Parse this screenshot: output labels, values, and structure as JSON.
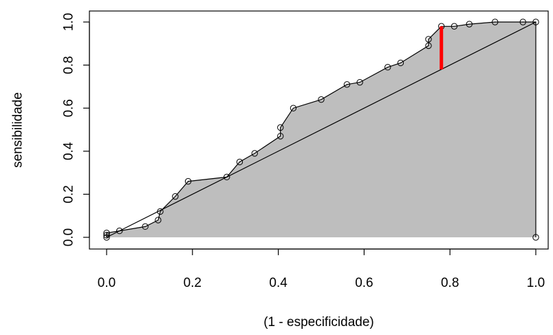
{
  "chart_data": {
    "type": "line",
    "title": "",
    "xlabel": "(1 - especificidade)",
    "ylabel": "sensibilidade",
    "xlim": [
      0,
      1
    ],
    "ylim": [
      0,
      1
    ],
    "x_ticks": [
      0.0,
      0.2,
      0.4,
      0.6,
      0.8,
      1.0
    ],
    "y_ticks": [
      0.0,
      0.2,
      0.4,
      0.6,
      0.8,
      1.0
    ],
    "x_tick_labels": [
      "0.0",
      "0.2",
      "0.4",
      "0.6",
      "0.8",
      "1.0"
    ],
    "y_tick_labels": [
      "0.0",
      "0.2",
      "0.4",
      "0.6",
      "0.8",
      "1.0"
    ],
    "grid": false,
    "fill_color": "#bebebe",
    "line_color": "#000000",
    "highlight_color": "#ff0000",
    "series": [
      {
        "x": [
          0.0,
          0.0,
          0.0,
          0.03,
          0.09,
          0.12,
          0.125,
          0.16,
          0.19,
          0.28,
          0.31,
          0.345,
          0.405,
          0.405,
          0.435,
          0.5,
          0.56,
          0.59,
          0.655,
          0.685,
          0.75,
          0.75,
          0.78,
          0.81,
          0.845,
          0.905,
          0.97,
          1.0,
          1.0
        ],
        "y": [
          0.0,
          0.01,
          0.02,
          0.03,
          0.05,
          0.08,
          0.12,
          0.19,
          0.26,
          0.28,
          0.35,
          0.39,
          0.47,
          0.51,
          0.6,
          0.64,
          0.71,
          0.72,
          0.79,
          0.81,
          0.89,
          0.92,
          0.98,
          0.98,
          0.99,
          1.0,
          1.0,
          1.0,
          0.0
        ]
      }
    ],
    "reference_line": {
      "x": [
        0,
        1
      ],
      "y": [
        0,
        1
      ]
    },
    "highlight_segment": {
      "x": 0.78,
      "y_from": 0.78,
      "y_to": 0.98
    }
  }
}
